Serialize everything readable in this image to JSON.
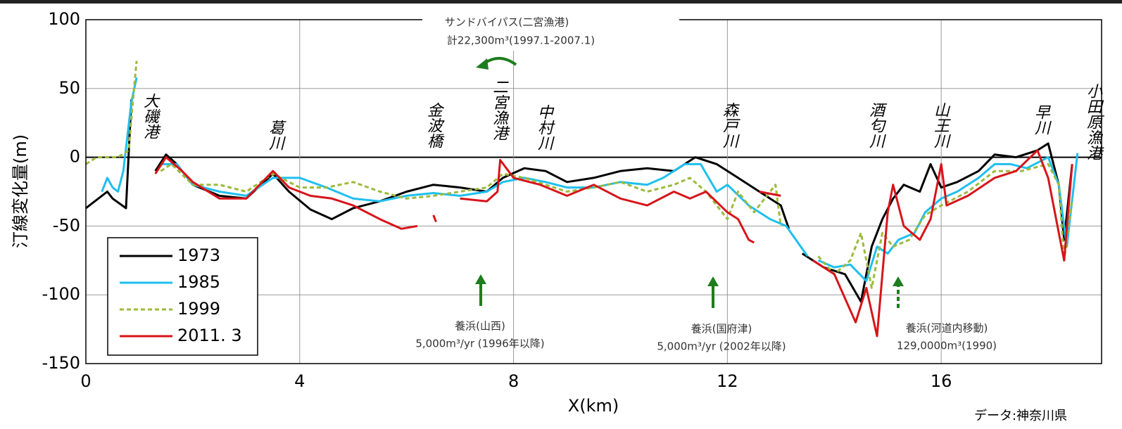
{
  "chart_data": {
    "type": "line",
    "y_label": "汀線変化量(m)",
    "x_label": "X(km)",
    "source": "データ:神奈川県",
    "xlim": [
      0,
      19
    ],
    "xticks": [
      0,
      4,
      8,
      12,
      16
    ],
    "ylim": [
      -150,
      100
    ],
    "yticks": [
      -150,
      -100,
      -50,
      0,
      50,
      100
    ],
    "grid": true,
    "legend": "lower left",
    "landmarks": [
      "大磯港",
      "葛川",
      "金波橋",
      "二宮漁港",
      "中村川",
      "森戸川",
      "酒匂川",
      "山王川",
      "早川",
      "小田原漁港"
    ],
    "annotations": [
      "サンドバイパス(二宮漁港)",
      "計22,300m³(1997.1-2007.1)",
      "養浜(山西)",
      "5,000m³/yr (1996年以降)",
      "養浜(国府津)",
      "5,000m³/yr (2002年以降)",
      "養浜(河道内移動)",
      "129,0000m³(1990)"
    ],
    "series": [
      {
        "name": "1973",
        "color": "#000000",
        "style": "solid",
        "x": [
          0,
          0.4,
          0.5,
          0.75,
          0.85,
          null,
          1.3,
          1.5,
          1.7,
          2.0,
          2.5,
          3.0,
          3.5,
          3.8,
          4.2,
          4.6,
          5.0,
          5.5,
          6.0,
          6.5,
          7.0,
          7.5,
          7.8,
          8.2,
          8.6,
          9.0,
          9.5,
          10.0,
          10.5,
          11.0,
          11.4,
          11.8,
          12.2,
          12.6,
          13.0,
          13.15,
          null,
          13.4,
          13.8,
          14.2,
          14.5,
          14.7,
          14.9,
          15.1,
          15.3,
          15.6,
          15.8,
          16.0,
          16.3,
          16.7,
          17.0,
          17.4,
          17.8,
          18.0,
          18.2,
          18.3,
          18.45
        ],
        "values": [
          -37,
          -25,
          -30,
          -37,
          42,
          null,
          -10,
          2,
          -5,
          -20,
          -28,
          -30,
          -12,
          -25,
          -38,
          -45,
          -37,
          -32,
          -25,
          -20,
          -22,
          -25,
          -15,
          -8,
          -10,
          -18,
          -15,
          -10,
          -8,
          -10,
          0,
          -5,
          -15,
          -25,
          -35,
          -52,
          null,
          -70,
          -80,
          -85,
          -105,
          -65,
          -45,
          -30,
          -20,
          -25,
          -5,
          -22,
          -18,
          -10,
          2,
          0,
          5,
          10,
          -20,
          -60,
          -5
        ]
      },
      {
        "name": "1985",
        "color": "#1fbfef",
        "style": "solid",
        "x": [
          0.3,
          0.4,
          0.5,
          0.6,
          0.7,
          0.85,
          0.95,
          null,
          1.4,
          1.7,
          2.0,
          2.5,
          3.0,
          3.5,
          4.0,
          4.5,
          5.0,
          5.5,
          6.0,
          6.5,
          7.0,
          7.5,
          7.8,
          8.2,
          8.6,
          9.0,
          9.5,
          10.0,
          10.5,
          10.8,
          11.2,
          11.5,
          11.8,
          12.0,
          12.4,
          12.8,
          13.1,
          13.5,
          null,
          13.7,
          14.0,
          14.3,
          14.6,
          14.8,
          15.0,
          15.2,
          15.5,
          15.7,
          16.0,
          16.3,
          16.7,
          17.0,
          17.3,
          17.6,
          18.0,
          18.2,
          18.35,
          18.55
        ],
        "values": [
          -25,
          -15,
          -22,
          -25,
          -10,
          40,
          58,
          null,
          -5,
          -5,
          -20,
          -25,
          -28,
          -15,
          -15,
          -22,
          -30,
          -32,
          -28,
          -26,
          -28,
          -25,
          -18,
          -15,
          -18,
          -22,
          -22,
          -18,
          -20,
          -15,
          -5,
          -5,
          -25,
          -20,
          -35,
          -45,
          -50,
          -72,
          null,
          -75,
          -80,
          -78,
          -90,
          -65,
          -70,
          -60,
          -55,
          -40,
          -30,
          -25,
          -15,
          -5,
          -5,
          -8,
          0,
          -20,
          -65,
          3
        ]
      },
      {
        "name": "1999",
        "color": "#9bbb3b",
        "style": "dashed",
        "x": [
          0,
          0.2,
          0.6,
          0.8,
          0.9,
          0.95,
          null,
          1.4,
          1.6,
          2.0,
          2.5,
          3.0,
          3.5,
          4.0,
          4.5,
          5.0,
          5.5,
          6.0,
          6.5,
          7.0,
          7.5,
          7.8,
          8.2,
          8.6,
          9.0,
          9.5,
          10.0,
          10.5,
          11.0,
          11.3,
          11.6,
          12.0,
          12.2,
          12.5,
          12.8,
          12.9,
          13.0,
          null,
          13.7,
          14.0,
          14.3,
          14.5,
          14.7,
          14.9,
          15.1,
          15.4,
          15.7,
          16.0,
          16.5,
          17.0,
          17.5,
          18.0,
          18.2,
          18.3,
          18.45
        ],
        "values": [
          -5,
          0,
          0,
          5,
          50,
          70,
          null,
          -10,
          -5,
          -20,
          -20,
          -25,
          -12,
          -22,
          -22,
          -18,
          -25,
          -30,
          -28,
          -25,
          -22,
          -12,
          -15,
          -20,
          -25,
          -22,
          -18,
          -25,
          -20,
          -15,
          -25,
          -45,
          -25,
          -40,
          -25,
          -20,
          -50,
          null,
          -72,
          -85,
          -75,
          -55,
          -95,
          -55,
          -65,
          -60,
          -42,
          -35,
          -25,
          -10,
          -10,
          -5,
          -20,
          -75,
          -30
        ]
      },
      {
        "name": "2011. 3",
        "color": "#d7141a",
        "style": "solid",
        "x": [
          1.3,
          1.5,
          1.8,
          2.0,
          2.5,
          3.0,
          3.5,
          3.8,
          4.2,
          4.6,
          5.0,
          5.5,
          5.9,
          6.2,
          null,
          6.5,
          6.55,
          null,
          7.0,
          7.5,
          7.7,
          7.75,
          8.0,
          8.5,
          9.0,
          9.5,
          10.0,
          10.5,
          11.0,
          11.3,
          11.6,
          12.0,
          12.2,
          12.4,
          12.5,
          null,
          12.6,
          13.0,
          null,
          13.6,
          14.0,
          14.4,
          14.6,
          14.8,
          15.0,
          15.1,
          15.3,
          15.6,
          15.8,
          16.0,
          16.1,
          16.5,
          17.0,
          17.4,
          17.8,
          18.0,
          18.3,
          18.45
        ],
        "values": [
          -12,
          0,
          -10,
          -18,
          -30,
          -30,
          -10,
          -22,
          -28,
          -30,
          -35,
          -45,
          -52,
          -50,
          null,
          -42,
          -47,
          null,
          -30,
          -32,
          -25,
          -2,
          -15,
          -20,
          -28,
          -20,
          -30,
          -35,
          -25,
          -30,
          -25,
          -40,
          -45,
          -60,
          -62,
          null,
          -25,
          -28,
          null,
          -75,
          -85,
          -120,
          -95,
          -130,
          -40,
          -20,
          -50,
          -60,
          -45,
          -5,
          -35,
          -28,
          -15,
          -10,
          5,
          -15,
          -75,
          -5
        ]
      }
    ]
  }
}
